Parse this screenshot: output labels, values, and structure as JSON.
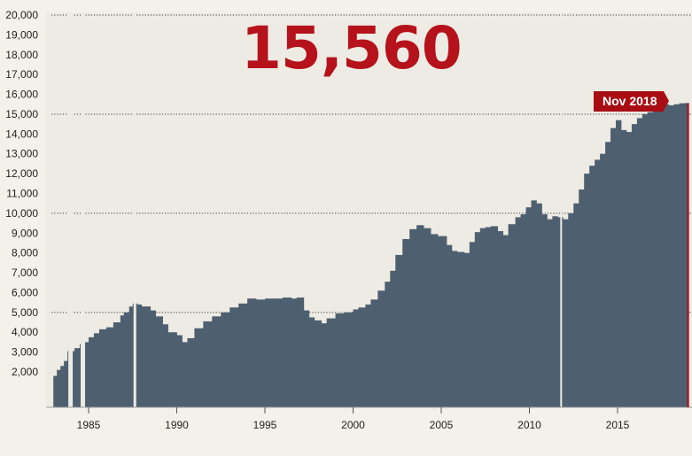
{
  "headline_value": "15,560",
  "callout_label": "Nov 2018",
  "colors": {
    "bars": "#4e6070",
    "accent": "#b5121b",
    "callout_bg": "#a80d14",
    "background": "#f4f1ea",
    "plot_background": "#eeebe4"
  },
  "chart_data": {
    "type": "area",
    "title": "",
    "xlabel": "",
    "ylabel": "",
    "xlim": [
      1982.5,
      2019
    ],
    "ylim": [
      1000,
      20000
    ],
    "y_ticks": [
      2000,
      3000,
      4000,
      5000,
      6000,
      7000,
      8000,
      9000,
      10000,
      11000,
      12000,
      13000,
      14000,
      15000,
      16000,
      17000,
      18000,
      19000,
      20000
    ],
    "y_tick_labels": [
      "2,000",
      "3,000",
      "4,000",
      "5,000",
      "6,000",
      "7,000",
      "8,000",
      "9,000",
      "10,000",
      "11,000",
      "12,000",
      "13,000",
      "14,000",
      "15,000",
      "16,000",
      "17,000",
      "18,000",
      "19,000",
      "20,000"
    ],
    "x_ticks": [
      1985,
      1990,
      1995,
      2000,
      2005,
      2010,
      2015
    ],
    "x_tick_labels": [
      "1985",
      "1990",
      "1995",
      "2000",
      "2005",
      "2010",
      "2015"
    ],
    "reference_lines": [
      5000,
      10000,
      15000,
      20000
    ],
    "grid": false,
    "gaps": [
      [
        1983.85,
        1984.1
      ],
      [
        1984.55,
        1984.8
      ],
      [
        1987.55,
        1987.7
      ],
      [
        2011.75,
        2011.85
      ]
    ],
    "x": [
      1983.0,
      1983.2,
      1983.4,
      1983.6,
      1983.8,
      1984.2,
      1984.5,
      1984.8,
      1985.0,
      1985.3,
      1985.6,
      1986.0,
      1986.4,
      1986.8,
      1987.0,
      1987.3,
      1987.5,
      1987.75,
      1988.0,
      1988.5,
      1988.8,
      1989.2,
      1989.5,
      1990.0,
      1990.3,
      1990.6,
      1991.0,
      1991.5,
      1992.0,
      1992.5,
      1993.0,
      1993.5,
      1994.0,
      1994.5,
      1995.0,
      1995.5,
      1996.0,
      1996.5,
      1996.8,
      1997.2,
      1997.5,
      1997.8,
      1998.2,
      1998.5,
      1999.0,
      1999.5,
      2000.0,
      2000.3,
      2000.7,
      2001.0,
      2001.4,
      2001.8,
      2002.1,
      2002.4,
      2002.8,
      2003.2,
      2003.6,
      2004.0,
      2004.4,
      2004.8,
      2005.0,
      2005.3,
      2005.6,
      2005.9,
      2006.3,
      2006.6,
      2006.9,
      2007.2,
      2007.5,
      2007.8,
      2008.2,
      2008.5,
      2008.8,
      2009.2,
      2009.5,
      2009.8,
      2010.1,
      2010.4,
      2010.7,
      2011.0,
      2011.3,
      2011.6,
      2011.9,
      2012.2,
      2012.5,
      2012.8,
      2013.1,
      2013.4,
      2013.7,
      2014.0,
      2014.3,
      2014.6,
      2014.9,
      2015.2,
      2015.5,
      2015.8,
      2016.1,
      2016.4,
      2016.7,
      2017.0,
      2017.3,
      2017.6,
      2017.9,
      2018.2,
      2018.5,
      2018.8
    ],
    "values": [
      1800,
      2100,
      2300,
      2550,
      3050,
      3200,
      3400,
      3500,
      3750,
      3950,
      4150,
      4250,
      4500,
      4850,
      5000,
      5300,
      5450,
      5400,
      5300,
      5100,
      4800,
      4400,
      4000,
      3850,
      3500,
      3700,
      4200,
      4550,
      4800,
      5000,
      5250,
      5450,
      5700,
      5650,
      5700,
      5700,
      5750,
      5700,
      5750,
      5100,
      4750,
      4600,
      4450,
      4700,
      4950,
      5000,
      5150,
      5250,
      5400,
      5650,
      6100,
      6550,
      7100,
      7900,
      8700,
      9200,
      9400,
      9250,
      8950,
      8850,
      8850,
      8400,
      8100,
      8050,
      8000,
      8550,
      9050,
      9250,
      9300,
      9350,
      9100,
      8900,
      9450,
      9800,
      9950,
      10300,
      10650,
      10500,
      9950,
      9700,
      9850,
      9800,
      9700,
      10000,
      10500,
      11200,
      12000,
      12400,
      12700,
      13000,
      13600,
      14300,
      14700,
      14200,
      14100,
      14500,
      14800,
      15000,
      15100,
      15200,
      15350,
      15500,
      15450,
      15500,
      15550,
      15560
    ]
  }
}
